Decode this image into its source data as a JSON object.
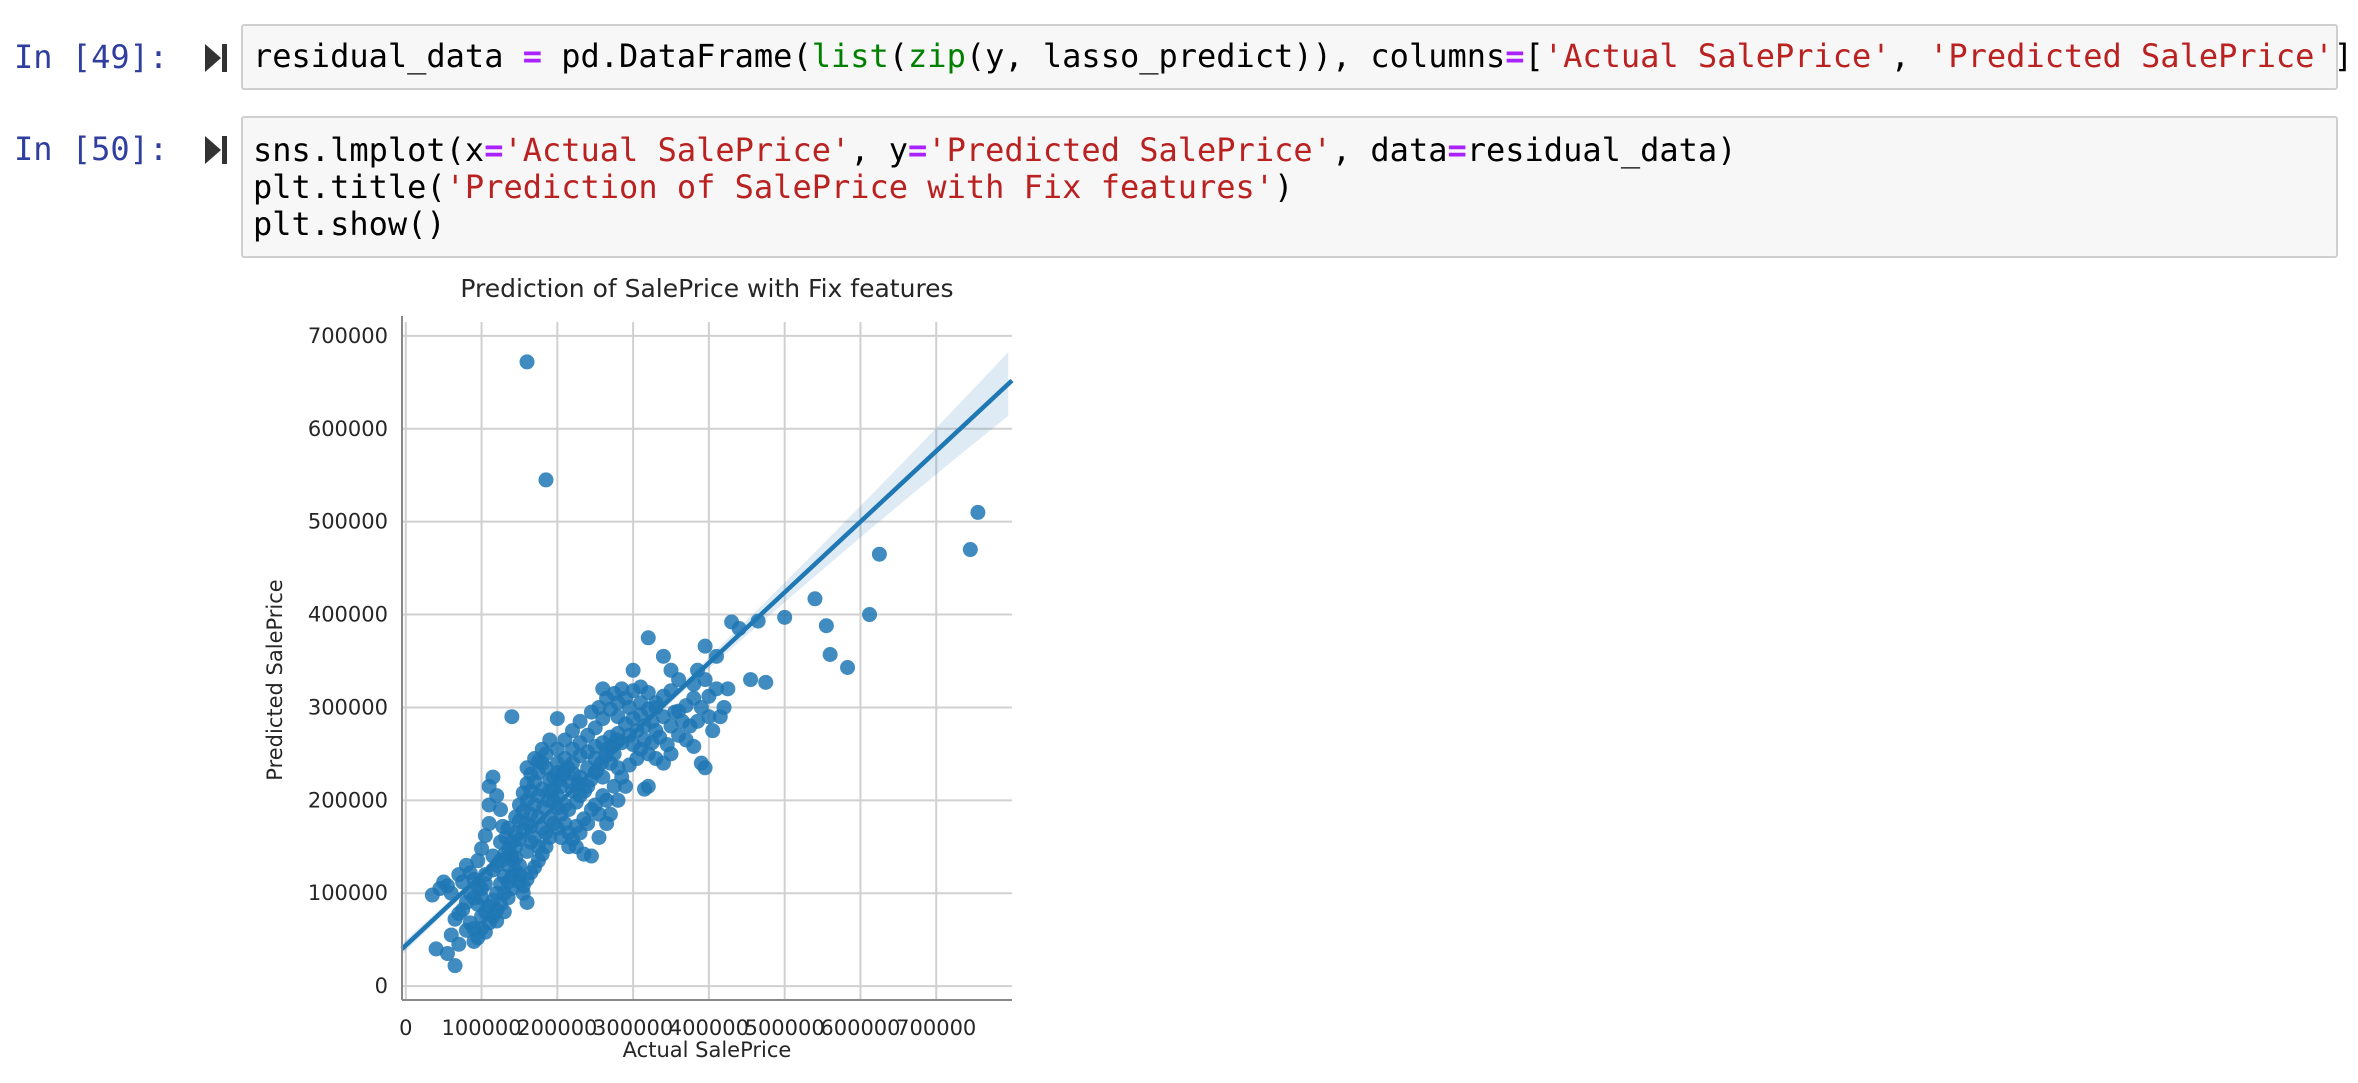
{
  "cells": [
    {
      "prompt": "In [49]:",
      "lines": [
        [
          {
            "t": "residual_data ",
            "c": ""
          },
          {
            "t": "=",
            "c": "kw-op"
          },
          {
            "t": " pd.DataFrame(",
            "c": ""
          },
          {
            "t": "list",
            "c": "kw-builtin"
          },
          {
            "t": "(",
            "c": ""
          },
          {
            "t": "zip",
            "c": "kw-builtin"
          },
          {
            "t": "(y, lasso_predict)), columns",
            "c": ""
          },
          {
            "t": "=",
            "c": "kw-op"
          },
          {
            "t": "[",
            "c": ""
          },
          {
            "t": "'Actual SalePrice'",
            "c": "kw-str"
          },
          {
            "t": ", ",
            "c": ""
          },
          {
            "t": "'Predicted SalePrice'",
            "c": "kw-str"
          },
          {
            "t": "])",
            "c": ""
          }
        ]
      ]
    },
    {
      "prompt": "In [50]:",
      "lines": [
        [
          {
            "t": "sns.lmplot(x",
            "c": ""
          },
          {
            "t": "=",
            "c": "kw-op"
          },
          {
            "t": "'Actual SalePrice'",
            "c": "kw-str"
          },
          {
            "t": ", y",
            "c": ""
          },
          {
            "t": "=",
            "c": "kw-op"
          },
          {
            "t": "'Predicted SalePrice'",
            "c": "kw-str"
          },
          {
            "t": ", data",
            "c": ""
          },
          {
            "t": "=",
            "c": "kw-op"
          },
          {
            "t": "residual_data)",
            "c": ""
          }
        ],
        [
          {
            "t": "plt.title(",
            "c": ""
          },
          {
            "t": "'Prediction of SalePrice with Fix features'",
            "c": "kw-str"
          },
          {
            "t": ")",
            "c": ""
          }
        ],
        [
          {
            "t": "plt.show()",
            "c": ""
          }
        ]
      ]
    }
  ],
  "icons": {
    "run": "run-cell-icon"
  },
  "colors": {
    "point": "#1f77b4",
    "grid": "#d0d0d0",
    "prompt": "#303F9F"
  },
  "chart_data": {
    "type": "scatter",
    "title": "Prediction of SalePrice with Fix features",
    "xlabel": "Actual SalePrice",
    "ylabel": "Predicted SalePrice",
    "xlim": [
      -5000,
      800000
    ],
    "ylim": [
      -15000,
      715000
    ],
    "xticks": [
      0,
      100000,
      200000,
      300000,
      400000,
      500000,
      600000,
      700000
    ],
    "yticks": [
      0,
      100000,
      200000,
      300000,
      400000,
      500000,
      600000,
      700000
    ],
    "grid": true,
    "regression_line": {
      "x": [
        -5000,
        800000
      ],
      "y": [
        40000,
        652000
      ]
    },
    "points": [
      [
        160000,
        672000
      ],
      [
        185000,
        545000
      ],
      [
        755000,
        510000
      ],
      [
        745000,
        470000
      ],
      [
        625000,
        465000
      ],
      [
        540000,
        417000
      ],
      [
        612000,
        400000
      ],
      [
        500000,
        397000
      ],
      [
        555000,
        388000
      ],
      [
        560000,
        357000
      ],
      [
        583000,
        343000
      ],
      [
        475000,
        327000
      ],
      [
        465000,
        393000
      ],
      [
        430000,
        392000
      ],
      [
        320000,
        375000
      ],
      [
        440000,
        385000
      ],
      [
        410000,
        355000
      ],
      [
        395000,
        366000
      ],
      [
        300000,
        340000
      ],
      [
        340000,
        355000
      ],
      [
        385000,
        340000
      ],
      [
        425000,
        320000
      ],
      [
        455000,
        330000
      ],
      [
        400000,
        290000
      ],
      [
        390000,
        240000
      ],
      [
        395000,
        235000
      ],
      [
        320000,
        215000
      ],
      [
        315000,
        212000
      ],
      [
        140000,
        290000
      ],
      [
        200000,
        288000
      ],
      [
        35000,
        98000
      ],
      [
        40000,
        40000
      ],
      [
        55000,
        35000
      ],
      [
        65000,
        22000
      ],
      [
        70000,
        45000
      ],
      [
        80000,
        60000
      ],
      [
        60000,
        55000
      ],
      [
        90000,
        48000
      ],
      [
        100000,
        62000
      ],
      [
        120000,
        70000
      ],
      [
        130000,
        80000
      ],
      [
        75000,
        112000
      ],
      [
        85000,
        122000
      ],
      [
        95000,
        135000
      ],
      [
        100000,
        148000
      ],
      [
        105000,
        162000
      ],
      [
        110000,
        175000
      ],
      [
        110000,
        195000
      ],
      [
        110000,
        215000
      ],
      [
        115000,
        225000
      ],
      [
        120000,
        205000
      ],
      [
        125000,
        190000
      ],
      [
        128000,
        172000
      ],
      [
        132000,
        160000
      ],
      [
        136000,
        148000
      ],
      [
        140000,
        136000
      ],
      [
        145000,
        124000
      ],
      [
        150000,
        112000
      ],
      [
        155000,
        100000
      ],
      [
        160000,
        90000
      ],
      [
        120000,
        130000
      ],
      [
        130000,
        142000
      ],
      [
        140000,
        155000
      ],
      [
        145000,
        165000
      ],
      [
        150000,
        178000
      ],
      [
        155000,
        188000
      ],
      [
        160000,
        200000
      ],
      [
        165000,
        210000
      ],
      [
        170000,
        220000
      ],
      [
        175000,
        230000
      ],
      [
        180000,
        240000
      ],
      [
        185000,
        250000
      ],
      [
        190000,
        210000
      ],
      [
        195000,
        200000
      ],
      [
        200000,
        192000
      ],
      [
        205000,
        185000
      ],
      [
        210000,
        175000
      ],
      [
        215000,
        165000
      ],
      [
        220000,
        158000
      ],
      [
        225000,
        150000
      ],
      [
        235000,
        142000
      ],
      [
        245000,
        140000
      ],
      [
        255000,
        160000
      ],
      [
        265000,
        175000
      ],
      [
        270000,
        185000
      ],
      [
        280000,
        200000
      ],
      [
        290000,
        215000
      ],
      [
        200000,
        230000
      ],
      [
        210000,
        245000
      ],
      [
        220000,
        255000
      ],
      [
        230000,
        262000
      ],
      [
        240000,
        270000
      ],
      [
        250000,
        278000
      ],
      [
        260000,
        288000
      ],
      [
        270000,
        298000
      ],
      [
        280000,
        305000
      ],
      [
        290000,
        310000
      ],
      [
        300000,
        318000
      ],
      [
        310000,
        322000
      ],
      [
        320000,
        316000
      ],
      [
        330000,
        300000
      ],
      [
        340000,
        290000
      ],
      [
        350000,
        280000
      ],
      [
        360000,
        270000
      ],
      [
        370000,
        265000
      ],
      [
        380000,
        258000
      ],
      [
        300000,
        260000
      ],
      [
        310000,
        255000
      ],
      [
        320000,
        250000
      ],
      [
        330000,
        245000
      ],
      [
        250000,
        230000
      ],
      [
        260000,
        225000
      ],
      [
        240000,
        215000
      ],
      [
        230000,
        205000
      ],
      [
        225000,
        198000
      ],
      [
        215000,
        220000
      ],
      [
        205000,
        215000
      ],
      [
        195000,
        225000
      ],
      [
        185000,
        235000
      ],
      [
        175000,
        205000
      ],
      [
        170000,
        195000
      ],
      [
        165000,
        185000
      ],
      [
        160000,
        175000
      ],
      [
        155000,
        168000
      ],
      [
        150000,
        158000
      ],
      [
        145000,
        150000
      ],
      [
        140000,
        140000
      ],
      [
        135000,
        130000
      ],
      [
        130000,
        118000
      ],
      [
        125000,
        110000
      ],
      [
        120000,
        100000
      ],
      [
        115000,
        92000
      ],
      [
        110000,
        86000
      ],
      [
        105000,
        80000
      ],
      [
        100000,
        75000
      ],
      [
        95000,
        88000
      ],
      [
        90000,
        95000
      ],
      [
        85000,
        100000
      ],
      [
        80000,
        90000
      ],
      [
        75000,
        82000
      ],
      [
        70000,
        78000
      ],
      [
        65000,
        72000
      ],
      [
        60000,
        100000
      ],
      [
        55000,
        108000
      ],
      [
        50000,
        112000
      ],
      [
        45000,
        105000
      ],
      [
        70000,
        120000
      ],
      [
        80000,
        130000
      ],
      [
        90000,
        115000
      ],
      [
        100000,
        105000
      ],
      [
        105000,
        120000
      ],
      [
        115000,
        140000
      ],
      [
        125000,
        155000
      ],
      [
        135000,
        170000
      ],
      [
        145000,
        182000
      ],
      [
        150000,
        195000
      ],
      [
        155000,
        208000
      ],
      [
        160000,
        218000
      ],
      [
        165000,
        228000
      ],
      [
        175000,
        242000
      ],
      [
        180000,
        212000
      ],
      [
        190000,
        222000
      ],
      [
        200000,
        240000
      ],
      [
        210000,
        232000
      ],
      [
        220000,
        240000
      ],
      [
        230000,
        248000
      ],
      [
        240000,
        252000
      ],
      [
        250000,
        258000
      ],
      [
        260000,
        262000
      ],
      [
        270000,
        268000
      ],
      [
        280000,
        272000
      ],
      [
        290000,
        282000
      ],
      [
        300000,
        288000
      ],
      [
        310000,
        292000
      ],
      [
        320000,
        298000
      ],
      [
        330000,
        305000
      ],
      [
        340000,
        312000
      ],
      [
        350000,
        318000
      ],
      [
        360000,
        296000
      ],
      [
        370000,
        302000
      ],
      [
        380000,
        310000
      ],
      [
        390000,
        300000
      ],
      [
        400000,
        312000
      ],
      [
        410000,
        320000
      ],
      [
        420000,
        300000
      ],
      [
        350000,
        250000
      ],
      [
        340000,
        240000
      ],
      [
        330000,
        275000
      ],
      [
        280000,
        235000
      ],
      [
        270000,
        240000
      ],
      [
        260000,
        205000
      ],
      [
        250000,
        195000
      ],
      [
        245000,
        190000
      ],
      [
        235000,
        180000
      ],
      [
        225000,
        172000
      ],
      [
        215000,
        190000
      ],
      [
        200000,
        170000
      ],
      [
        190000,
        160000
      ],
      [
        185000,
        150000
      ],
      [
        180000,
        142000
      ],
      [
        175000,
        135000
      ],
      [
        170000,
        128000
      ],
      [
        165000,
        122000
      ],
      [
        160000,
        115000
      ],
      [
        155000,
        108000
      ],
      [
        150000,
        130000
      ],
      [
        145000,
        138000
      ],
      [
        140000,
        118000
      ],
      [
        135000,
        112000
      ],
      [
        130000,
        100000
      ],
      [
        125000,
        88000
      ],
      [
        120000,
        82000
      ],
      [
        115000,
        75000
      ],
      [
        110000,
        68000
      ],
      [
        105000,
        58000
      ],
      [
        95000,
        52000
      ],
      [
        90000,
        62000
      ],
      [
        85000,
        68000
      ],
      [
        170000,
        160000
      ],
      [
        180000,
        170000
      ],
      [
        190000,
        180000
      ],
      [
        200000,
        205000
      ],
      [
        210000,
        195000
      ],
      [
        220000,
        210000
      ],
      [
        230000,
        225000
      ],
      [
        240000,
        235000
      ],
      [
        250000,
        245000
      ],
      [
        265000,
        255000
      ],
      [
        275000,
        250000
      ],
      [
        285000,
        262000
      ],
      [
        295000,
        270000
      ],
      [
        305000,
        275000
      ],
      [
        315000,
        280000
      ],
      [
        325000,
        285000
      ],
      [
        335000,
        268000
      ],
      [
        345000,
        260000
      ],
      [
        355000,
        295000
      ],
      [
        365000,
        285000
      ],
      [
        375000,
        280000
      ],
      [
        385000,
        285000
      ],
      [
        230000,
        165000
      ],
      [
        240000,
        175000
      ],
      [
        255000,
        185000
      ],
      [
        265000,
        200000
      ],
      [
        275000,
        215000
      ],
      [
        285000,
        225000
      ],
      [
        295000,
        238000
      ],
      [
        305000,
        245000
      ],
      [
        315000,
        265000
      ],
      [
        325000,
        262000
      ],
      [
        160000,
        145000
      ],
      [
        165000,
        155000
      ],
      [
        175000,
        150000
      ],
      [
        185000,
        165000
      ],
      [
        195000,
        175000
      ],
      [
        205000,
        160000
      ],
      [
        215000,
        150000
      ],
      [
        150000,
        120000
      ],
      [
        140000,
        105000
      ],
      [
        135000,
        95000
      ],
      [
        125000,
        135000
      ],
      [
        115000,
        125000
      ],
      [
        105000,
        110000
      ],
      [
        100000,
        95000
      ],
      [
        95000,
        108000
      ],
      [
        160000,
        235000
      ],
      [
        170000,
        245000
      ],
      [
        180000,
        255000
      ],
      [
        190000,
        265000
      ],
      [
        200000,
        255000
      ],
      [
        210000,
        265000
      ],
      [
        220000,
        275000
      ],
      [
        230000,
        285000
      ],
      [
        245000,
        295000
      ],
      [
        255000,
        300000
      ],
      [
        265000,
        310000
      ],
      [
        275000,
        315000
      ],
      [
        285000,
        320000
      ],
      [
        260000,
        320000
      ],
      [
        280000,
        290000
      ],
      [
        405000,
        275000
      ],
      [
        415000,
        290000
      ],
      [
        380000,
        325000
      ],
      [
        395000,
        330000
      ],
      [
        360000,
        330000
      ],
      [
        350000,
        340000
      ],
      [
        310000,
        305000
      ],
      [
        295000,
        300000
      ],
      [
        165000,
        172000
      ],
      [
        175000,
        182000
      ],
      [
        182000,
        192000
      ],
      [
        188000,
        200000
      ],
      [
        195000,
        212000
      ],
      [
        202000,
        222000
      ],
      [
        208000,
        228000
      ],
      [
        214000,
        235000
      ],
      [
        222000,
        228000
      ],
      [
        228000,
        218000
      ],
      [
        236000,
        210000
      ],
      [
        244000,
        222000
      ],
      [
        252000,
        232000
      ],
      [
        258000,
        240000
      ],
      [
        264000,
        248000
      ],
      [
        272000,
        258000
      ],
      [
        278000,
        265000
      ]
    ]
  }
}
